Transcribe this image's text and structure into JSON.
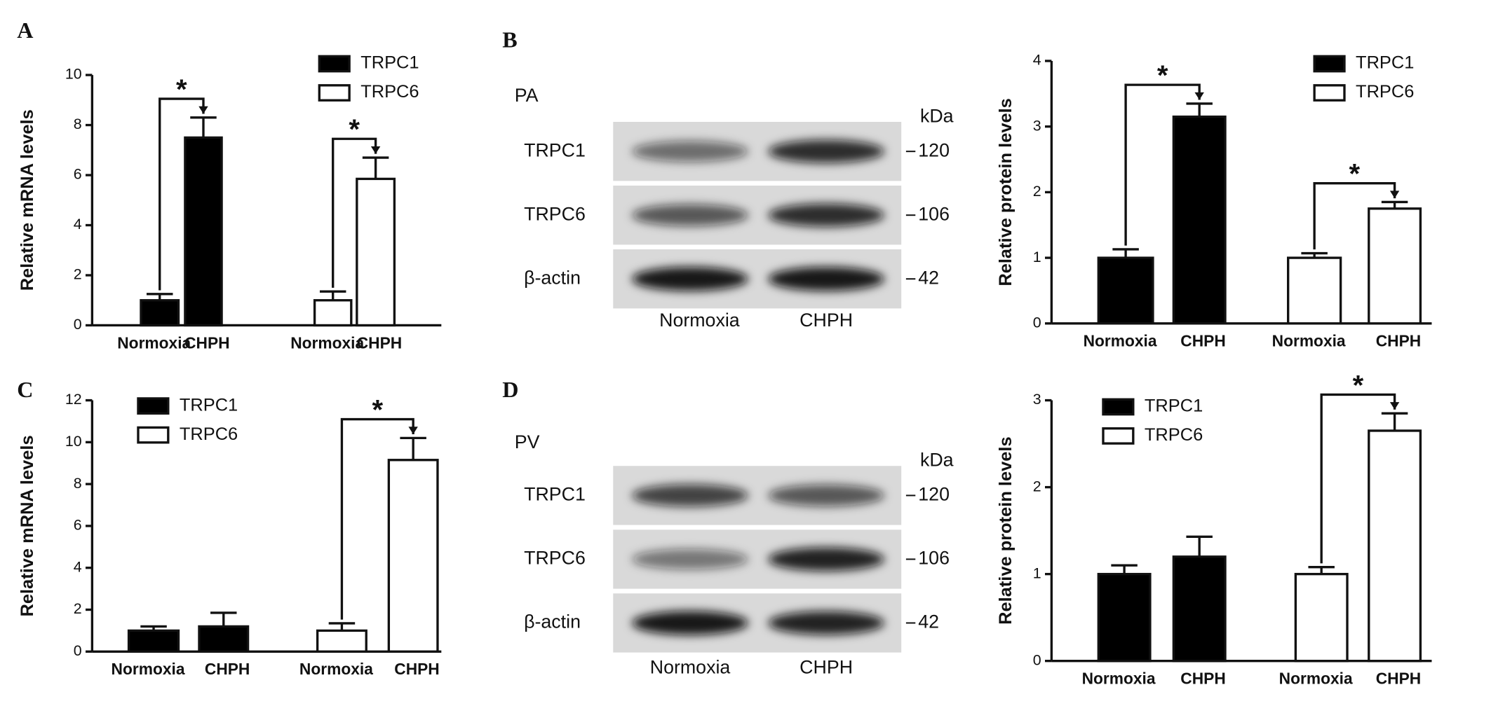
{
  "panel_labels": [
    "A",
    "B",
    "C",
    "D"
  ],
  "blots": [
    {
      "region": "PA",
      "unit": "kDa",
      "lanes": [
        "Normoxia",
        "CHPH"
      ],
      "bands": [
        {
          "label": "TRPC1",
          "size": 120
        },
        {
          "label": "TRPC6",
          "size": 106
        },
        {
          "label": "β-actin",
          "size": 42
        }
      ]
    },
    {
      "region": "PV",
      "unit": "kDa",
      "lanes": [
        "Normoxia",
        "CHPH"
      ],
      "bands": [
        {
          "label": "TRPC1",
          "size": 120
        },
        {
          "label": "TRPC6",
          "size": 106
        },
        {
          "label": "β-actin",
          "size": 42
        }
      ]
    }
  ],
  "chart_data": [
    {
      "type": "bar",
      "y_label": "Relative mRNA levels",
      "categories": [
        "Normoxia",
        "CHPH"
      ],
      "ylim": [
        0,
        10
      ],
      "yticks": [
        0,
        2,
        4,
        6,
        8,
        10
      ],
      "legend": "upper right",
      "series": [
        {
          "name": "TRPC1",
          "color": "#000000",
          "values": [
            1.0,
            7.5
          ],
          "errors": [
            0.25,
            0.8
          ]
        },
        {
          "name": "TRPC6",
          "color": "#ffffff",
          "values": [
            1.0,
            5.85
          ],
          "errors": [
            0.35,
            0.85
          ]
        }
      ],
      "significance": [
        {
          "series": 0,
          "label": "*"
        },
        {
          "series": 1,
          "label": "*"
        }
      ]
    },
    {
      "type": "bar",
      "y_label": "Relative protein levels",
      "categories": [
        "Normoxia",
        "CHPH"
      ],
      "ylim": [
        0,
        4
      ],
      "yticks": [
        0,
        1,
        2,
        3,
        4
      ],
      "legend": "upper right",
      "series": [
        {
          "name": "TRPC1",
          "color": "#000000",
          "values": [
            1.0,
            3.15
          ],
          "errors": [
            0.13,
            0.2
          ]
        },
        {
          "name": "TRPC6",
          "color": "#ffffff",
          "values": [
            1.0,
            1.75
          ],
          "errors": [
            0.07,
            0.1
          ]
        }
      ],
      "significance": [
        {
          "series": 0,
          "label": "*"
        },
        {
          "series": 1,
          "label": "*"
        }
      ]
    },
    {
      "type": "bar",
      "y_label": "Relative mRNA levels",
      "categories": [
        "Normoxia",
        "CHPH"
      ],
      "ylim": [
        0,
        12
      ],
      "yticks": [
        0,
        2,
        4,
        6,
        8,
        10,
        12
      ],
      "legend": "upper left",
      "series": [
        {
          "name": "TRPC1",
          "color": "#000000",
          "values": [
            1.0,
            1.2
          ],
          "errors": [
            0.2,
            0.65
          ]
        },
        {
          "name": "TRPC6",
          "color": "#ffffff",
          "values": [
            1.0,
            9.15
          ],
          "errors": [
            0.35,
            1.05
          ]
        }
      ],
      "significance": [
        {
          "series": 1,
          "label": "*"
        }
      ]
    },
    {
      "type": "bar",
      "y_label": "Relative protein levels",
      "categories": [
        "Normoxia",
        "CHPH"
      ],
      "ylim": [
        0,
        3
      ],
      "yticks": [
        0,
        1,
        2,
        3
      ],
      "legend": "upper left",
      "series": [
        {
          "name": "TRPC1",
          "color": "#000000",
          "values": [
            1.0,
            1.2
          ],
          "errors": [
            0.1,
            0.23
          ]
        },
        {
          "name": "TRPC6",
          "color": "#ffffff",
          "values": [
            1.0,
            2.65
          ],
          "errors": [
            0.08,
            0.2
          ]
        }
      ],
      "significance": [
        {
          "series": 1,
          "label": "*"
        }
      ]
    }
  ]
}
